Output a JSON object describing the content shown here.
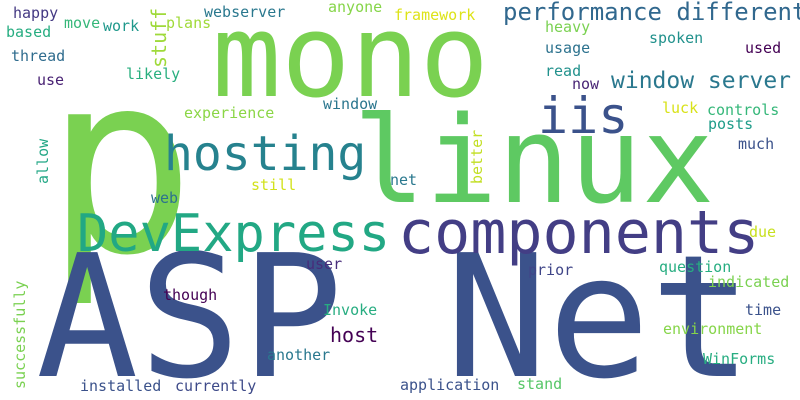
{
  "words": [
    {
      "text": "p",
      "color": "#7ad151"
    },
    {
      "text": "ASP Net",
      "color": "#3b528b"
    },
    {
      "text": "mono",
      "color": "#7ad151"
    },
    {
      "text": "linux",
      "color": "#5ec962"
    },
    {
      "text": "components",
      "color": "#433e85"
    },
    {
      "text": "DevExpress",
      "color": "#22a884"
    },
    {
      "text": "hosting",
      "color": "#26828e"
    },
    {
      "text": "iis",
      "color": "#3b528b"
    },
    {
      "text": "performance different",
      "color": "#31688e"
    },
    {
      "text": "window server",
      "color": "#2a788e"
    },
    {
      "text": "stuff",
      "color": "#9fda3a"
    },
    {
      "text": "happy",
      "color": "#443983"
    },
    {
      "text": "move",
      "color": "#35b779"
    },
    {
      "text": "work",
      "color": "#1f988b"
    },
    {
      "text": "plans",
      "color": "#a0da39"
    },
    {
      "text": "webserver",
      "color": "#2a788e"
    },
    {
      "text": "anyone",
      "color": "#86d549"
    },
    {
      "text": "framework",
      "color": "#dde318"
    },
    {
      "text": "based",
      "color": "#27ad81"
    },
    {
      "text": "thread",
      "color": "#2f6c8e"
    },
    {
      "text": "use",
      "color": "#482173"
    },
    {
      "text": "likely",
      "color": "#29af7f"
    },
    {
      "text": "heavy",
      "color": "#7ad151"
    },
    {
      "text": "spoken",
      "color": "#21918c"
    },
    {
      "text": "used",
      "color": "#440154"
    },
    {
      "text": "usage",
      "color": "#2c728e"
    },
    {
      "text": "read",
      "color": "#21918c"
    },
    {
      "text": "now",
      "color": "#482475"
    },
    {
      "text": "experience",
      "color": "#8bd646"
    },
    {
      "text": "window",
      "color": "#2a768e"
    },
    {
      "text": "luck",
      "color": "#d8e219"
    },
    {
      "text": "controls",
      "color": "#35b779"
    },
    {
      "text": "posts",
      "color": "#1e9c89"
    },
    {
      "text": "much",
      "color": "#3b528b"
    },
    {
      "text": "allow",
      "color": "#22a785"
    },
    {
      "text": "better",
      "color": "#c2df23"
    },
    {
      "text": "still",
      "color": "#d2e21b"
    },
    {
      "text": "net",
      "color": "#2a788e"
    },
    {
      "text": "web",
      "color": "#2c728e"
    },
    {
      "text": "due",
      "color": "#c8e020"
    },
    {
      "text": "user",
      "color": "#472c7a"
    },
    {
      "text": "question",
      "color": "#27ad81"
    },
    {
      "text": "indicated",
      "color": "#7ad151"
    },
    {
      "text": "prior",
      "color": "#404688"
    },
    {
      "text": "successfully",
      "color": "#7ad151"
    },
    {
      "text": "though",
      "color": "#440154"
    },
    {
      "text": "time",
      "color": "#3b528b"
    },
    {
      "text": "Invoke",
      "color": "#27ad81"
    },
    {
      "text": "environment",
      "color": "#86d549"
    },
    {
      "text": "host",
      "color": "#440154"
    },
    {
      "text": "another",
      "color": "#2a788e"
    },
    {
      "text": "WinForms",
      "color": "#27ad81"
    },
    {
      "text": "installed",
      "color": "#3b528b"
    },
    {
      "text": "currently",
      "color": "#3e4a89"
    },
    {
      "text": "application",
      "color": "#3b528b"
    },
    {
      "text": "stand",
      "color": "#56c667"
    }
  ]
}
